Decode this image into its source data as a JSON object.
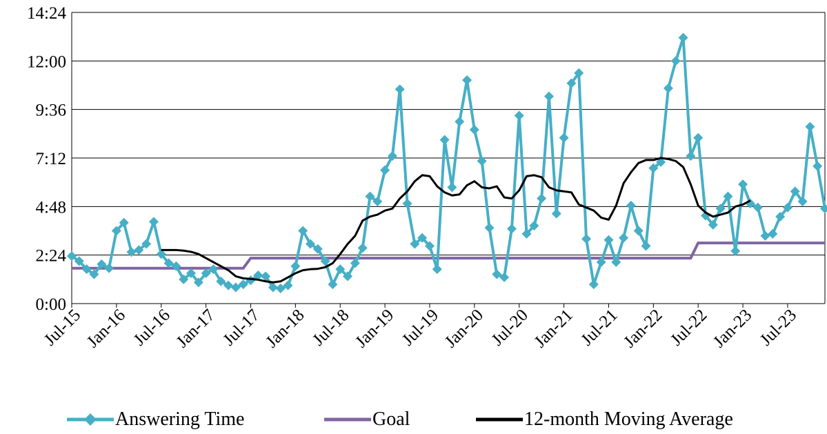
{
  "chart_data": {
    "type": "line",
    "title": "",
    "xlabel": "",
    "ylabel": "",
    "y_unit": "minutes (axis shown as m:ss)",
    "ylim": [
      0,
      14.4
    ],
    "yticks": [
      0,
      2.4,
      4.8,
      7.2,
      9.6,
      12.0,
      14.4
    ],
    "yticklabels": [
      "0:00",
      "2:24",
      "4:48",
      "7:12",
      "9:36",
      "12:00",
      "14:24"
    ],
    "xlim": [
      "2015-07",
      "2023-12"
    ],
    "xticklabels": [
      "Jul-15",
      "Jan-16",
      "Jul-16",
      "Jan-17",
      "Jul-17",
      "Jan-18",
      "Jul-18",
      "Jan-19",
      "Jul-19",
      "Jan-20",
      "Jul-20",
      "Jan-21",
      "Jul-21",
      "Jan-22",
      "Jul-22",
      "Jan-23",
      "Jul-23"
    ],
    "grid": "horizontal",
    "legend_position": "bottom",
    "series": [
      {
        "name": "Answering Time",
        "color": "#46AFC6",
        "marker": "diamond",
        "start": "2015-07",
        "values": [
          2.35,
          2.1,
          1.7,
          1.45,
          1.95,
          1.75,
          3.6,
          4.0,
          2.55,
          2.65,
          2.95,
          4.05,
          2.45,
          2.0,
          1.85,
          1.2,
          1.5,
          1.05,
          1.5,
          1.7,
          1.1,
          0.9,
          0.8,
          0.95,
          1.15,
          1.4,
          1.35,
          0.8,
          0.75,
          0.9,
          1.85,
          3.6,
          2.95,
          2.7,
          2.1,
          0.95,
          1.7,
          1.35,
          2.0,
          2.75,
          5.3,
          5.05,
          6.6,
          7.3,
          10.6,
          4.95,
          2.95,
          3.25,
          2.85,
          1.7,
          8.1,
          5.75,
          9.0,
          11.05,
          8.6,
          7.05,
          3.75,
          1.45,
          1.3,
          3.7,
          9.3,
          3.45,
          3.85,
          5.2,
          10.25,
          4.45,
          8.2,
          10.9,
          11.4,
          3.2,
          0.95,
          2.05,
          3.15,
          2.05,
          3.25,
          4.85,
          3.6,
          2.85,
          6.7,
          7.0,
          10.65,
          12.0,
          13.15,
          7.3,
          8.2,
          4.35,
          3.9,
          4.7,
          5.3,
          2.6,
          5.9,
          4.95,
          4.75,
          3.35,
          3.45,
          4.3,
          4.75,
          5.55,
          5.05,
          8.75,
          6.8,
          4.7
        ]
      },
      {
        "name": "Goal",
        "color": "#8064A2",
        "start": "2015-07",
        "segments": [
          {
            "from": "2015-07",
            "to": "2017-06",
            "value": 1.75
          },
          {
            "from": "2017-07",
            "to": "2022-06",
            "value": 2.25
          },
          {
            "from": "2022-07",
            "to": "2023-12",
            "value": 3.0
          }
        ]
      },
      {
        "name": "12-month Moving Average",
        "color": "#000000",
        "start": "2016-07",
        "values": [
          2.65,
          2.65,
          2.65,
          2.62,
          2.56,
          2.45,
          2.25,
          2.05,
          1.85,
          1.65,
          1.35,
          1.25,
          1.22,
          1.18,
          1.1,
          1.05,
          1.1,
          1.3,
          1.5,
          1.65,
          1.7,
          1.72,
          1.8,
          2.0,
          2.45,
          2.95,
          3.35,
          4.1,
          4.3,
          4.4,
          4.6,
          4.7,
          5.2,
          5.55,
          6.05,
          6.35,
          6.3,
          5.8,
          5.5,
          5.35,
          5.4,
          5.85,
          6.05,
          5.75,
          5.7,
          5.8,
          5.25,
          5.2,
          5.6,
          6.3,
          6.35,
          6.25,
          5.75,
          5.6,
          5.55,
          5.5,
          4.9,
          4.75,
          4.6,
          4.25,
          4.15,
          4.85,
          5.95,
          6.5,
          6.95,
          7.1,
          7.1,
          7.2,
          7.15,
          7.05,
          6.75,
          5.9,
          4.85,
          4.5,
          4.3,
          4.4,
          4.5,
          4.8,
          4.9,
          5.1
        ]
      }
    ]
  }
}
